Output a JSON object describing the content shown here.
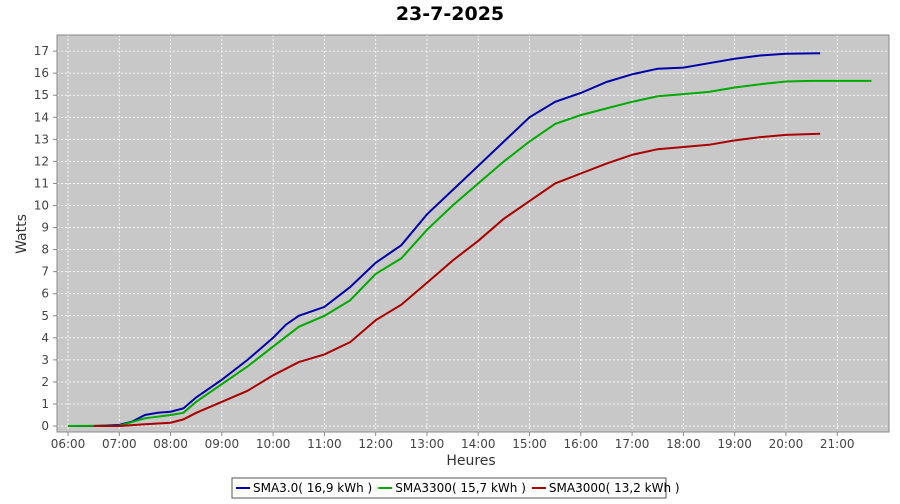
{
  "chart_data": {
    "type": "line",
    "title": "23-7-2025",
    "y_label": "Watts",
    "x_label": "Heures",
    "xlim": [
      5.785,
      22.01
    ],
    "ylim": [
      -0.27,
      17.73
    ],
    "xticks": [
      {
        "value": 6,
        "label": "06:00"
      },
      {
        "value": 7,
        "label": "07:00"
      },
      {
        "value": 8,
        "label": "08:00"
      },
      {
        "value": 9,
        "label": "09:00"
      },
      {
        "value": 10,
        "label": "10:00"
      },
      {
        "value": 11,
        "label": "11:00"
      },
      {
        "value": 12,
        "label": "12:00"
      },
      {
        "value": 13,
        "label": "13:00"
      },
      {
        "value": 14,
        "label": "14:00"
      },
      {
        "value": 15,
        "label": "15:00"
      },
      {
        "value": 16,
        "label": "16:00"
      },
      {
        "value": 17,
        "label": "17:00"
      },
      {
        "value": 18,
        "label": "18:00"
      },
      {
        "value": 19,
        "label": "19:00"
      },
      {
        "value": 20,
        "label": "20:00"
      },
      {
        "value": 21,
        "label": "21:00"
      }
    ],
    "yticks": [
      0,
      1,
      2,
      3,
      4,
      5,
      6,
      7,
      8,
      9,
      10,
      11,
      12,
      13,
      14,
      15,
      16,
      17
    ],
    "grid": true,
    "series": [
      {
        "name": "SMA3.0( 16,9 kWh )",
        "color": "#0000aa",
        "x": [
          6,
          6.5,
          7,
          7.25,
          7.5,
          7.75,
          8,
          8.25,
          8.5,
          9,
          9.5,
          10,
          10.25,
          10.5,
          11,
          11.5,
          12,
          12.25,
          12.5,
          13,
          13.5,
          14,
          14.5,
          15,
          15.5,
          16,
          16.5,
          17,
          17.5,
          18,
          18.5,
          19,
          19.5,
          20,
          20.667
        ],
        "values": [
          0,
          0,
          0.05,
          0.2,
          0.5,
          0.6,
          0.65,
          0.8,
          1.3,
          2.1,
          3.0,
          4.0,
          4.6,
          5.0,
          5.4,
          6.3,
          7.4,
          7.8,
          8.2,
          9.6,
          10.7,
          11.8,
          12.9,
          14.0,
          14.7,
          15.1,
          15.6,
          15.95,
          16.2,
          16.25,
          16.45,
          16.65,
          16.8,
          16.88,
          16.9
        ]
      },
      {
        "name": "SMA3300( 15,7 kWh )",
        "color": "#00aa00",
        "x": [
          6,
          7,
          7.5,
          8,
          8.25,
          8.5,
          9,
          9.5,
          10,
          10.5,
          11,
          11.5,
          12,
          12.5,
          13,
          13.5,
          14,
          14.5,
          15,
          15.5,
          16,
          16.5,
          17,
          17.5,
          18,
          18.5,
          19,
          19.5,
          20,
          20.5,
          21.667
        ],
        "values": [
          0,
          0.02,
          0.35,
          0.5,
          0.6,
          1.1,
          1.9,
          2.7,
          3.6,
          4.5,
          5.0,
          5.7,
          6.9,
          7.6,
          8.9,
          10.0,
          11.0,
          12.0,
          12.9,
          13.7,
          14.1,
          14.4,
          14.7,
          14.95,
          15.05,
          15.15,
          15.35,
          15.5,
          15.62,
          15.65,
          15.65
        ]
      },
      {
        "name": "SMA3000( 13,2 kWh )",
        "color": "#aa0000",
        "x": [
          6.5,
          7,
          7.5,
          8,
          8.25,
          8.5,
          9,
          9.5,
          10,
          10.5,
          11,
          11.5,
          12,
          12.5,
          13,
          13.5,
          14,
          14.5,
          15,
          15.5,
          16,
          16.5,
          17,
          17.5,
          18,
          18.5,
          19,
          19.5,
          20,
          20.667
        ],
        "values": [
          0,
          0,
          0.08,
          0.15,
          0.3,
          0.6,
          1.1,
          1.6,
          2.3,
          2.9,
          3.25,
          3.8,
          4.8,
          5.5,
          6.5,
          7.5,
          8.4,
          9.4,
          10.2,
          11.0,
          11.45,
          11.9,
          12.3,
          12.55,
          12.65,
          12.75,
          12.95,
          13.1,
          13.2,
          13.25
        ]
      }
    ]
  }
}
